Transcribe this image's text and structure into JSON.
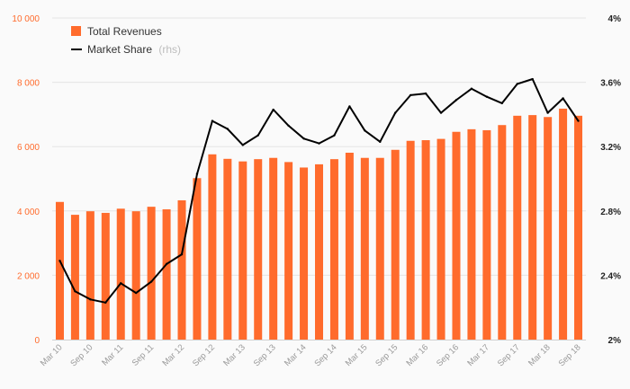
{
  "chart_data": {
    "type": "bar+line",
    "categories": [
      "Mar 10",
      "Jun 10",
      "Sep 10",
      "Dec 10",
      "Mar 11",
      "Jun 11",
      "Sep 11",
      "Dec 11",
      "Mar 12",
      "Jun 12",
      "Sep 12",
      "Dec 12",
      "Mar 13",
      "Jun 13",
      "Sep 13",
      "Dec 13",
      "Mar 14",
      "Jun 14",
      "Sep 14",
      "Dec 14",
      "Mar 15",
      "Jun 15",
      "Sep 15",
      "Dec 15",
      "Mar 16",
      "Jun 16",
      "Sep 16",
      "Dec 16",
      "Mar 17",
      "Jun 17",
      "Sep 17",
      "Dec 17",
      "Mar 18",
      "Jun 18",
      "Sep 18"
    ],
    "tick_labels": [
      "Mar 10",
      "Sep 10",
      "Mar 11",
      "Sep 11",
      "Mar 12",
      "Sep 12",
      "Mar 13",
      "Sep 13",
      "Mar 14",
      "Sep 14",
      "Mar 15",
      "Sep 15",
      "Mar 16",
      "Sep 16",
      "Mar 17",
      "Sep 17",
      "Mar 18",
      "Sep 18"
    ],
    "series": [
      {
        "name": "Total Revenues",
        "axis": "left",
        "kind": "bar",
        "color": "#ff6b2c",
        "values": [
          4280,
          3880,
          3990,
          3940,
          4070,
          3990,
          4130,
          4050,
          4330,
          5020,
          5760,
          5620,
          5540,
          5610,
          5650,
          5520,
          5350,
          5450,
          5610,
          5810,
          5650,
          5650,
          5900,
          6180,
          6200,
          6240,
          6460,
          6540,
          6510,
          6670,
          6960,
          6980,
          6920,
          7180,
          6960
        ]
      },
      {
        "name": "Market Share",
        "note": "(rhs)",
        "axis": "right",
        "kind": "line",
        "color": "#000000",
        "values": [
          2.49,
          2.3,
          2.25,
          2.23,
          2.35,
          2.29,
          2.36,
          2.47,
          2.53,
          3.03,
          3.36,
          3.31,
          3.21,
          3.27,
          3.43,
          3.33,
          3.25,
          3.22,
          3.27,
          3.45,
          3.3,
          3.23,
          3.41,
          3.52,
          3.53,
          3.41,
          3.49,
          3.56,
          3.51,
          3.47,
          3.59,
          3.62,
          3.41,
          3.5,
          3.36
        ]
      }
    ],
    "y_left": {
      "range": [
        0,
        10000
      ],
      "ticks": [
        "0",
        "2 000",
        "4 000",
        "6 000",
        "8 000",
        "10 000"
      ]
    },
    "y_right": {
      "range": [
        2.0,
        4.0
      ],
      "ticks": [
        "2%",
        "2.4%",
        "2.8%",
        "3.2%",
        "3.6%",
        "4%"
      ]
    },
    "grid": true,
    "legend_position": "top-left"
  }
}
